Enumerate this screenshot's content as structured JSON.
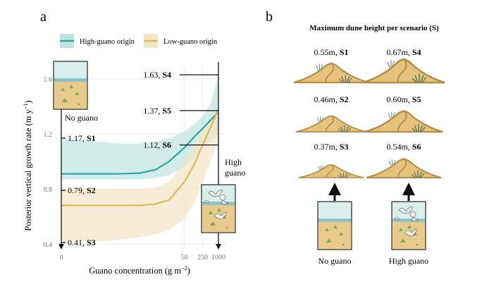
{
  "panel_a": {
    "letter": "a"
  },
  "panel_b": {
    "letter": "b",
    "title": "Maximum dune height per scenario (S)",
    "dunes": [
      {
        "value": "0.55m,",
        "scenario": "S1",
        "height_m": 0.55
      },
      {
        "value": "0.46m,",
        "scenario": "S2",
        "height_m": 0.46
      },
      {
        "value": "0.37m,",
        "scenario": "S3",
        "height_m": 0.37
      },
      {
        "value": "0.67m,",
        "scenario": "S4",
        "height_m": 0.67
      },
      {
        "value": "0.60m,",
        "scenario": "S5",
        "height_m": 0.6
      },
      {
        "value": "0.54m,",
        "scenario": "S6",
        "height_m": 0.54
      }
    ],
    "captions": [
      "No guano",
      "High guano"
    ]
  },
  "chart_data": {
    "type": "line",
    "xlabel": "Guano concentration (g m",
    "xlabel_sup": "−2",
    "xlabel_end": ")",
    "ylabel": "Posterior vertical growth rate (m y",
    "ylabel_sup": "−1",
    "ylabel_end": ")",
    "ylim": [
      0.4,
      1.7
    ],
    "xlim": [
      0,
      1000
    ],
    "x_ticks": [
      0,
      50,
      250,
      1000
    ],
    "x_tick_labels": [
      "0",
      "50",
      "250",
      "1000"
    ],
    "y_ticks": [
      0.4,
      0.8,
      1.2,
      1.6
    ],
    "y_tick_labels": [
      "0.4",
      "0.8",
      "1.2",
      "1.6"
    ],
    "grid": true,
    "legend_position": "top",
    "x": [
      0,
      0.01,
      0.05,
      0.15,
      1,
      4,
      13,
      50,
      120,
      250,
      500,
      1000
    ],
    "series": [
      {
        "name": "High-guano origin",
        "color": "#2aa99a",
        "band_color": "#bfe4e1",
        "values": [
          0.91,
          0.91,
          0.91,
          0.91,
          0.915,
          0.94,
          1.0,
          1.1,
          1.18,
          1.24,
          1.3,
          1.36
        ],
        "lower": [
          0.87,
          0.87,
          0.87,
          0.87,
          0.87,
          0.88,
          0.9,
          0.96,
          1.03,
          1.1,
          1.15,
          1.2
        ],
        "upper": [
          1.16,
          1.15,
          1.14,
          1.13,
          1.13,
          1.14,
          1.17,
          1.22,
          1.27,
          1.33,
          1.42,
          1.63
        ]
      },
      {
        "name": "Low-guano origin",
        "color": "#e2b85c",
        "band_color": "#f3e6c4",
        "values": [
          0.68,
          0.68,
          0.68,
          0.68,
          0.68,
          0.69,
          0.72,
          0.85,
          0.98,
          1.12,
          1.25,
          1.38
        ],
        "lower": [
          0.42,
          0.42,
          0.42,
          0.43,
          0.45,
          0.47,
          0.5,
          0.58,
          0.7,
          0.85,
          1.0,
          1.15
        ],
        "upper": [
          0.8,
          0.8,
          0.8,
          0.8,
          0.8,
          0.81,
          0.85,
          1.0,
          1.12,
          1.24,
          1.3,
          1.36
        ]
      }
    ],
    "annotations": {
      "no_guano_label": "No guano",
      "high_guano_label": [
        "High",
        "guano"
      ],
      "left_marks": [
        {
          "y": 1.17,
          "value": "1.17,",
          "scenario": "S1"
        },
        {
          "y": 0.79,
          "value": "0.79,",
          "scenario": "S2"
        },
        {
          "y": 0.41,
          "value": "0.41,",
          "scenario": "S3"
        }
      ],
      "right_marks": [
        {
          "y": 1.63,
          "value": "1.63,",
          "scenario": "S4"
        },
        {
          "y": 1.37,
          "value": "1.37,",
          "scenario": "S5"
        },
        {
          "y": 1.12,
          "value": "1.12,",
          "scenario": "S6"
        }
      ]
    }
  }
}
